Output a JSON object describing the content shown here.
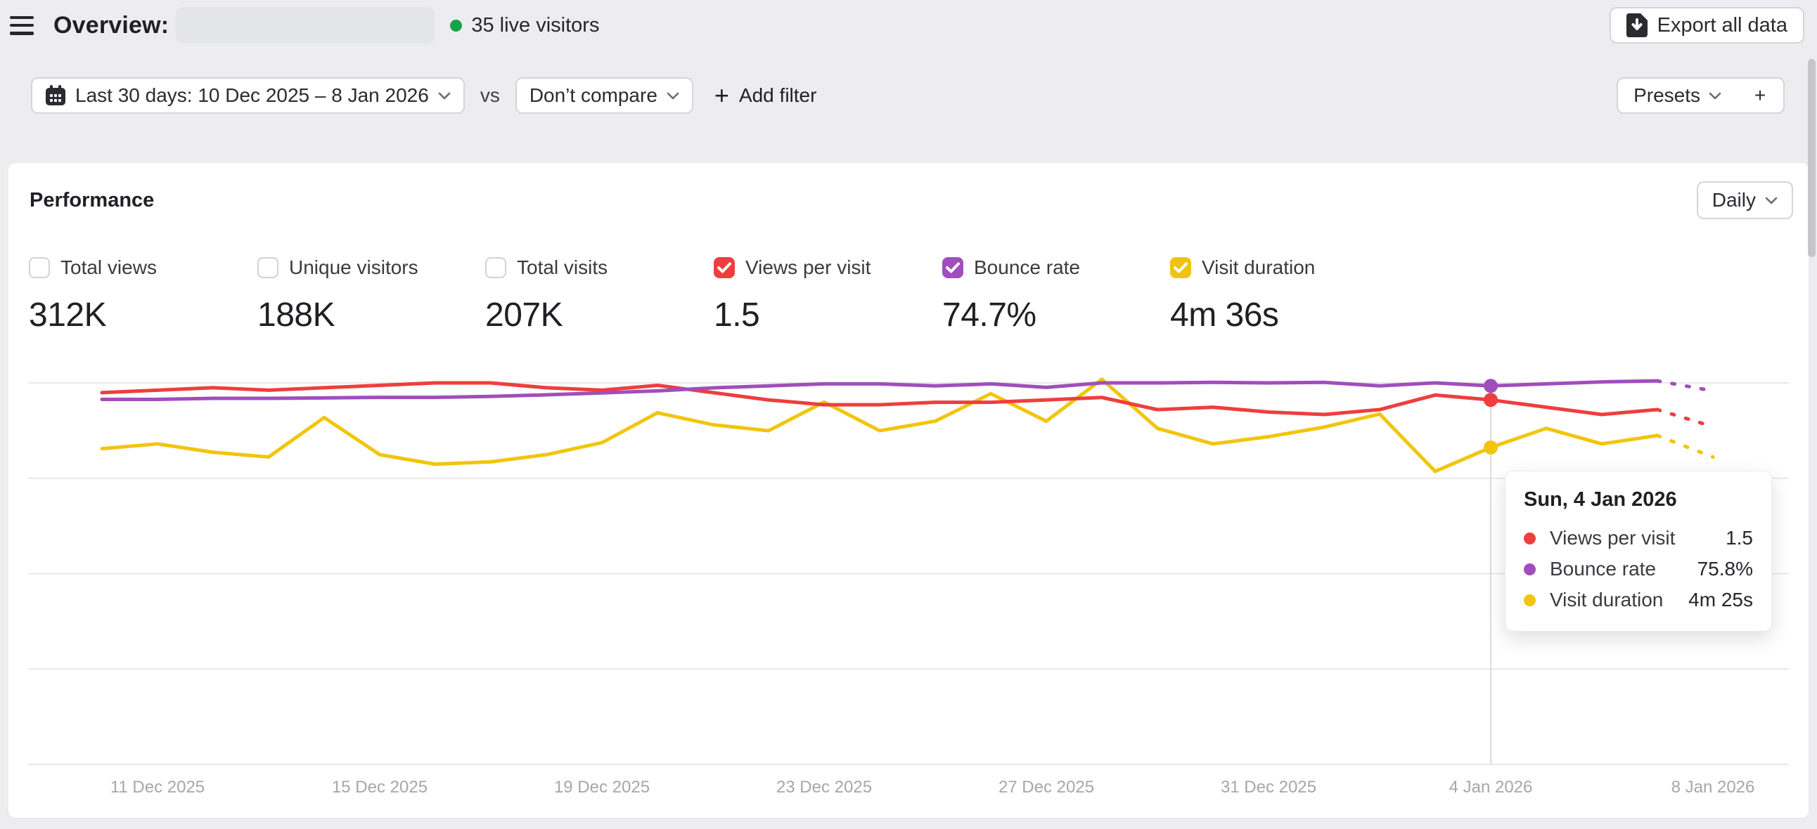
{
  "header": {
    "title": "Overview:",
    "live_visitors": "35 live visitors",
    "export_label": "Export all data"
  },
  "filter_bar": {
    "date_range_label": "Last 30 days: 10 Dec 2025 – 8 Jan 2026",
    "vs_label": "vs",
    "compare_label": "Don’t compare",
    "add_filter_label": "Add filter",
    "presets_label": "Presets",
    "new_preset_label": "+"
  },
  "performance": {
    "title": "Performance",
    "interval_label": "Daily",
    "metrics": [
      {
        "label": "Total views",
        "value": "312K",
        "checked": false,
        "color": null
      },
      {
        "label": "Unique visitors",
        "value": "188K",
        "checked": false,
        "color": null
      },
      {
        "label": "Total visits",
        "value": "207K",
        "checked": false,
        "color": null
      },
      {
        "label": "Views per visit",
        "value": "1.5",
        "checked": true,
        "color": "#ee3e3e"
      },
      {
        "label": "Bounce rate",
        "value": "74.7%",
        "checked": true,
        "color": "#a04ebc"
      },
      {
        "label": "Visit duration",
        "value": "4m 36s",
        "checked": true,
        "color": "#f0c312"
      }
    ]
  },
  "tooltip": {
    "title": "Sun, 4 Jan 2026",
    "rows": [
      {
        "label": "Views per visit",
        "value": "1.5",
        "color": "#ee3e3e"
      },
      {
        "label": "Bounce rate",
        "value": "75.8%",
        "color": "#a04ebc"
      },
      {
        "label": "Visit duration",
        "value": "4m 25s",
        "color": "#f2c50d"
      }
    ]
  },
  "chart_data": {
    "type": "line",
    "date_range": {
      "start": "10 Dec 2025",
      "end": "8 Jan 2026",
      "num_days": 30
    },
    "x_axis": {
      "tick_labels": [
        "11 Dec 2025",
        "15 Dec 2025",
        "19 Dec 2025",
        "23 Dec 2025",
        "27 Dec 2025",
        "31 Dec 2025",
        "4 Jan 2026",
        "8 Jan 2026"
      ],
      "tick_day_indices": [
        1,
        5,
        9,
        13,
        17,
        21,
        25,
        29
      ]
    },
    "grid": true,
    "legend_position": "none",
    "highlighted_day_index": 25,
    "last_segment_dashed": true,
    "series": [
      {
        "name": "Views per visit",
        "color": "#ee3e3e",
        "scale_max": 1.57,
        "values": [
          1.53,
          1.54,
          1.55,
          1.54,
          1.55,
          1.56,
          1.57,
          1.57,
          1.55,
          1.54,
          1.56,
          1.53,
          1.5,
          1.48,
          1.48,
          1.49,
          1.49,
          1.5,
          1.51,
          1.46,
          1.47,
          1.45,
          1.44,
          1.46,
          1.52,
          1.5,
          1.47,
          1.44,
          1.46,
          1.39
        ]
      },
      {
        "name": "Bounce rate",
        "unit": "%",
        "color": "#a04ebc",
        "scale_max": 76.4,
        "values": [
          73.1,
          73.1,
          73.3,
          73.3,
          73.4,
          73.5,
          73.5,
          73.7,
          74.0,
          74.4,
          74.8,
          75.4,
          75.8,
          76.2,
          76.2,
          75.8,
          76.2,
          75.5,
          76.4,
          76.4,
          76.5,
          76.4,
          76.5,
          75.8,
          76.4,
          75.8,
          76.2,
          76.6,
          76.8,
          74.8
        ]
      },
      {
        "name": "Visit duration",
        "unit": "seconds",
        "color": "#f2c50d",
        "scale_max": 319,
        "values": [
          264,
          268,
          261,
          257,
          290,
          259,
          251,
          253,
          259,
          269,
          294,
          284,
          279,
          303,
          279,
          287,
          310,
          287,
          322,
          281,
          268,
          274,
          282,
          293,
          245,
          265,
          281,
          268,
          275,
          257
        ]
      }
    ]
  }
}
